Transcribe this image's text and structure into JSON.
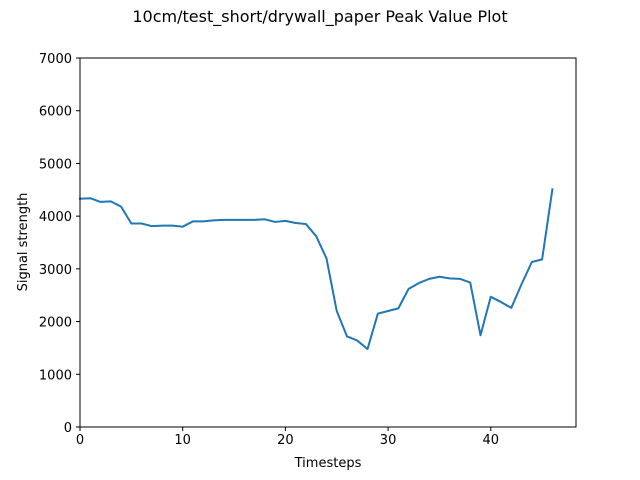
{
  "chart_data": {
    "type": "line",
    "title": "10cm/test_short/drywall_paper Peak Value Plot",
    "xlabel": "Timesteps",
    "ylabel": "Signal strength",
    "xlim": [
      0,
      48.3
    ],
    "ylim": [
      0,
      7000
    ],
    "xticks": [
      0,
      10,
      20,
      30,
      40
    ],
    "yticks": [
      0,
      1000,
      2000,
      3000,
      4000,
      5000,
      6000,
      7000
    ],
    "grid": false,
    "legend": "none",
    "series": [
      {
        "color": "#1f77b4",
        "x": [
          0,
          1,
          2,
          3,
          4,
          5,
          6,
          7,
          8,
          9,
          10,
          11,
          12,
          13,
          14,
          15,
          16,
          17,
          18,
          19,
          20,
          21,
          22,
          23,
          24,
          25,
          26,
          27,
          28,
          29,
          30,
          31,
          32,
          33,
          34,
          35,
          36,
          37,
          38,
          39,
          40,
          41,
          42,
          43,
          44,
          45,
          46
        ],
        "y": [
          4330,
          4340,
          4270,
          4280,
          4180,
          3860,
          3860,
          3810,
          3820,
          3820,
          3800,
          3900,
          3900,
          3920,
          3930,
          3930,
          3930,
          3930,
          3940,
          3890,
          3910,
          3870,
          3850,
          3620,
          3200,
          2200,
          1720,
          1640,
          1480,
          2150,
          2200,
          2250,
          2620,
          2730,
          2810,
          2850,
          2820,
          2810,
          2740,
          1740,
          2470,
          2370,
          2260,
          2710,
          3130,
          3180,
          4510
        ]
      }
    ]
  }
}
